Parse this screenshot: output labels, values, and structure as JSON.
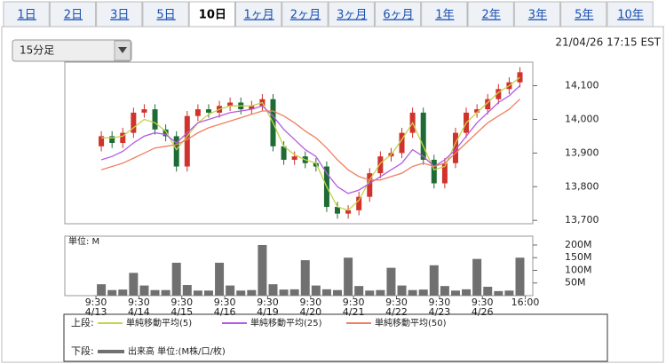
{
  "tabs": [
    "1日",
    "2日",
    "3日",
    "5日",
    "10日",
    "1ヶ月",
    "2ヶ月",
    "3ヶ月",
    "6ヶ月",
    "1年",
    "2年",
    "3年",
    "5年",
    "10年"
  ],
  "selected_tab": 4,
  "interval_select": "15分足",
  "timestamp": "21/04/26 17:15 EST",
  "legend": {
    "upper_label": "上段:",
    "lower_label": "下段:"
  },
  "chart_data": [
    {
      "type": "candlestick",
      "x": [
        0.5,
        1.5,
        2.5,
        3.5,
        4.5,
        5.5,
        6.5,
        7.5,
        8.5,
        9.5,
        10.5,
        11.5,
        12.5,
        13.5,
        14.5,
        15.5,
        16.5,
        17.5,
        18.5,
        19.5,
        20.5,
        21.5,
        22.5,
        23.5,
        24.5,
        25.5,
        26.5,
        27.5,
        28.5,
        29.5,
        30.5,
        31.5,
        32.5,
        33.5,
        34.5,
        35.5,
        36.5,
        37.5,
        38.5,
        39.5
      ],
      "open": [
        13920,
        13950,
        13930,
        13960,
        14020,
        14030,
        13970,
        13950,
        13860,
        14010,
        14030,
        14020,
        14040,
        14050,
        14030,
        14040,
        14060,
        13920,
        13880,
        13890,
        13870,
        13860,
        13740,
        13720,
        13730,
        13770,
        13840,
        13890,
        13900,
        13960,
        14020,
        13880,
        13810,
        13870,
        13960,
        14020,
        14030,
        14060,
        14090,
        14110
      ],
      "high": [
        13965,
        13965,
        13975,
        14035,
        14045,
        14045,
        13985,
        13965,
        14025,
        14045,
        14045,
        14055,
        14065,
        14065,
        14055,
        14075,
        14075,
        13935,
        13905,
        13905,
        13885,
        13875,
        13755,
        13745,
        13785,
        13855,
        13905,
        13915,
        13975,
        14035,
        14035,
        13895,
        13885,
        13975,
        14035,
        14045,
        14075,
        14105,
        14125,
        14155
      ],
      "low": [
        13905,
        13915,
        13915,
        13945,
        14005,
        13955,
        13935,
        13845,
        13845,
        13995,
        14005,
        14005,
        14025,
        14015,
        14015,
        14025,
        13905,
        13865,
        13865,
        13855,
        13845,
        13725,
        13705,
        13705,
        13715,
        13755,
        13825,
        13875,
        13885,
        13945,
        13865,
        13795,
        13795,
        13855,
        13945,
        14005,
        14015,
        14045,
        14075,
        14095
      ],
      "close": [
        13950,
        13930,
        13960,
        14020,
        14030,
        13970,
        13950,
        13860,
        14010,
        14030,
        14020,
        14040,
        14050,
        14030,
        14040,
        14060,
        13920,
        13880,
        13890,
        13870,
        13860,
        13740,
        13720,
        13730,
        13770,
        13840,
        13890,
        13900,
        13960,
        14020,
        13880,
        13810,
        13870,
        13960,
        14020,
        14030,
        14060,
        14090,
        14110,
        14140
      ],
      "up_color": "#d0322c",
      "down_color": "#1f6b35",
      "series": [
        {
          "name": "単純移動平均(5)",
          "color": "#c5d34a",
          "values": [
            13945,
            13945,
            13950,
            13975,
            14000,
            13990,
            13965,
            13910,
            13950,
            13990,
            14015,
            14030,
            14040,
            14040,
            14040,
            14050,
            13990,
            13920,
            13895,
            13880,
            13870,
            13800,
            13740,
            13730,
            13760,
            13820,
            13870,
            13895,
            13940,
            13990,
            13920,
            13850,
            13860,
            13930,
            13990,
            14020,
            14050,
            14080,
            14100,
            14125
          ]
        },
        {
          "name": "単純移動平均(25)",
          "color": "#b45ae0",
          "values": [
            13880,
            13890,
            13905,
            13930,
            13950,
            13960,
            13955,
            13930,
            13960,
            13990,
            14000,
            14010,
            14020,
            14025,
            14030,
            14040,
            14010,
            13970,
            13940,
            13910,
            13890,
            13840,
            13800,
            13780,
            13790,
            13810,
            13830,
            13850,
            13870,
            13910,
            13890,
            13860,
            13880,
            13910,
            13950,
            13990,
            14020,
            14050,
            14070,
            14100
          ]
        },
        {
          "name": "単純移動平均(50)",
          "color": "#ee8060",
          "values": [
            13850,
            13860,
            13870,
            13885,
            13900,
            13915,
            13920,
            13925,
            13940,
            13960,
            13975,
            13985,
            13995,
            14005,
            14015,
            14025,
            14025,
            14010,
            13990,
            13965,
            13945,
            13915,
            13880,
            13850,
            13830,
            13820,
            13820,
            13830,
            13840,
            13860,
            13870,
            13860,
            13870,
            13900,
            13930,
            13960,
            13990,
            14010,
            14030,
            14060
          ]
        }
      ],
      "xlim": [
        -2.9,
        40.7
      ],
      "ylim": [
        13690,
        14170
      ],
      "yticks": [
        {
          "value": 13700,
          "label": "13,700"
        },
        {
          "value": 13800,
          "label": "13,800"
        },
        {
          "value": 13900,
          "label": "13,900"
        },
        {
          "value": 14000,
          "label": "14,000"
        },
        {
          "value": 14100,
          "label": "14,100"
        }
      ]
    },
    {
      "type": "bar",
      "unit_label": "単位: M",
      "x": [
        0.5,
        1.5,
        2.5,
        3.5,
        4.5,
        5.5,
        6.5,
        7.5,
        8.5,
        9.5,
        10.5,
        11.5,
        12.5,
        13.5,
        14.5,
        15.5,
        16.5,
        17.5,
        18.5,
        19.5,
        20.5,
        21.5,
        22.5,
        23.5,
        24.5,
        25.5,
        26.5,
        27.5,
        28.5,
        29.5,
        30.5,
        31.5,
        32.5,
        33.5,
        34.5,
        35.5,
        36.5,
        37.5,
        38.5,
        39.5
      ],
      "series": [
        {
          "name": "出来高 単位:(M株/口/枚)",
          "color": "#707070",
          "values": [
            45,
            22,
            24,
            90,
            40,
            22,
            22,
            130,
            42,
            20,
            20,
            130,
            40,
            20,
            22,
            200,
            45,
            24,
            25,
            140,
            40,
            25,
            22,
            150,
            38,
            20,
            22,
            110,
            40,
            22,
            24,
            120,
            38,
            20,
            25,
            145,
            35,
            18,
            20,
            150
          ]
        }
      ],
      "xlim": [
        -2.9,
        40.7
      ],
      "ylim": [
        0,
        235
      ],
      "yticks": [
        {
          "value": 50,
          "label": "50M"
        },
        {
          "value": 100,
          "label": "100M"
        },
        {
          "value": 150,
          "label": "150M"
        },
        {
          "value": 200,
          "label": "200M"
        }
      ],
      "xticks": [
        {
          "value": 0,
          "label": "9:30"
        },
        {
          "value": 4,
          "label": "9:30"
        },
        {
          "value": 8,
          "label": "9:30"
        },
        {
          "value": 12,
          "label": "9:30"
        },
        {
          "value": 16,
          "label": "9:30"
        },
        {
          "value": 20,
          "label": "9:30"
        },
        {
          "value": 24,
          "label": "9:30"
        },
        {
          "value": 28,
          "label": "9:30"
        },
        {
          "value": 32,
          "label": "9:30"
        },
        {
          "value": 36,
          "label": "9:30"
        },
        {
          "value": 40,
          "label": "16:00"
        }
      ],
      "xtick_dates": [
        "4/13",
        "4/14",
        "4/15",
        "4/16",
        "4/19",
        "4/20",
        "4/21",
        "4/22",
        "4/23",
        "4/26"
      ]
    }
  ]
}
